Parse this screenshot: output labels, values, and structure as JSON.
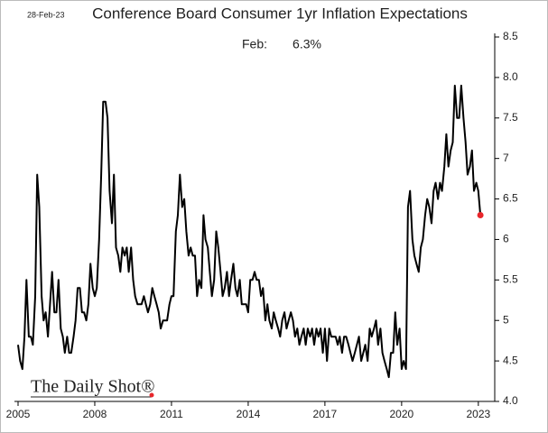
{
  "chart_data": {
    "type": "line",
    "title": "Conference Board Consumer 1yr Inflation Expectations",
    "date": "28-Feb-23",
    "annotation": {
      "label": "Feb:",
      "value": "6.3%"
    },
    "source": "The Daily Shot®",
    "xlim": [
      2005,
      2023.5
    ],
    "xticks": [
      2005,
      2008,
      2011,
      2014,
      2017,
      2020,
      2023
    ],
    "ylim": [
      4.0,
      8.5
    ],
    "yticks": [
      {
        "value": 4.0,
        "label": "4.0"
      },
      4.5,
      5.0,
      5.5,
      6.0,
      6.5,
      7.0,
      7.5,
      {
        "value": 8.0,
        "label": "8.0"
      },
      8.5
    ],
    "last_point_color": "#e8262b",
    "series": [
      {
        "name": "Consumer 1yr Inflation Expectations",
        "color": "#000000",
        "x": [
          2005.0,
          2005.08,
          2005.17,
          2005.25,
          2005.33,
          2005.42,
          2005.5,
          2005.58,
          2005.67,
          2005.75,
          2005.83,
          2005.92,
          2006.0,
          2006.08,
          2006.17,
          2006.25,
          2006.33,
          2006.42,
          2006.5,
          2006.58,
          2006.67,
          2006.75,
          2006.83,
          2006.92,
          2007.0,
          2007.08,
          2007.17,
          2007.25,
          2007.33,
          2007.42,
          2007.5,
          2007.58,
          2007.67,
          2007.75,
          2007.83,
          2007.92,
          2008.0,
          2008.08,
          2008.17,
          2008.25,
          2008.33,
          2008.42,
          2008.5,
          2008.58,
          2008.67,
          2008.75,
          2008.83,
          2008.92,
          2009.0,
          2009.08,
          2009.17,
          2009.25,
          2009.33,
          2009.42,
          2009.5,
          2009.58,
          2009.67,
          2009.75,
          2009.83,
          2009.92,
          2010.0,
          2010.08,
          2010.17,
          2010.25,
          2010.33,
          2010.42,
          2010.5,
          2010.58,
          2010.67,
          2010.75,
          2010.83,
          2010.92,
          2011.0,
          2011.08,
          2011.17,
          2011.25,
          2011.33,
          2011.42,
          2011.5,
          2011.58,
          2011.67,
          2011.75,
          2011.83,
          2011.92,
          2012.0,
          2012.08,
          2012.17,
          2012.25,
          2012.33,
          2012.42,
          2012.5,
          2012.58,
          2012.67,
          2012.75,
          2012.83,
          2012.92,
          2013.0,
          2013.08,
          2013.17,
          2013.25,
          2013.33,
          2013.42,
          2013.5,
          2013.58,
          2013.67,
          2013.75,
          2013.83,
          2013.92,
          2014.0,
          2014.08,
          2014.17,
          2014.25,
          2014.33,
          2014.42,
          2014.5,
          2014.58,
          2014.67,
          2014.75,
          2014.83,
          2014.92,
          2015.0,
          2015.08,
          2015.17,
          2015.25,
          2015.33,
          2015.42,
          2015.5,
          2015.58,
          2015.67,
          2015.75,
          2015.83,
          2015.92,
          2016.0,
          2016.08,
          2016.17,
          2016.25,
          2016.33,
          2016.42,
          2016.5,
          2016.58,
          2016.67,
          2016.75,
          2016.83,
          2016.92,
          2017.0,
          2017.08,
          2017.17,
          2017.25,
          2017.33,
          2017.42,
          2017.5,
          2017.58,
          2017.67,
          2017.75,
          2017.83,
          2017.92,
          2018.0,
          2018.08,
          2018.17,
          2018.25,
          2018.33,
          2018.42,
          2018.5,
          2018.58,
          2018.67,
          2018.75,
          2018.83,
          2018.92,
          2019.0,
          2019.08,
          2019.17,
          2019.25,
          2019.33,
          2019.42,
          2019.5,
          2019.58,
          2019.67,
          2019.75,
          2019.83,
          2019.92,
          2020.0,
          2020.08,
          2020.17,
          2020.25,
          2020.33,
          2020.42,
          2020.5,
          2020.58,
          2020.67,
          2020.75,
          2020.83,
          2020.92,
          2021.0,
          2021.08,
          2021.17,
          2021.25,
          2021.33,
          2021.42,
          2021.5,
          2021.58,
          2021.67,
          2021.75,
          2021.83,
          2021.92,
          2022.0,
          2022.08,
          2022.17,
          2022.25,
          2022.33,
          2022.42,
          2022.5,
          2022.58,
          2022.67,
          2022.75,
          2022.83,
          2022.92,
          2023.0,
          2023.08
        ],
        "values": [
          4.7,
          4.5,
          4.4,
          4.8,
          5.5,
          4.8,
          4.8,
          4.7,
          5.3,
          6.8,
          6.4,
          5.3,
          5.0,
          5.1,
          4.8,
          5.2,
          5.6,
          5.1,
          5.1,
          5.5,
          4.9,
          4.8,
          4.6,
          4.8,
          4.6,
          4.6,
          4.8,
          5.0,
          5.4,
          5.4,
          5.1,
          5.1,
          5.0,
          5.2,
          5.7,
          5.4,
          5.3,
          5.4,
          6.0,
          6.8,
          7.7,
          7.7,
          7.5,
          6.6,
          6.2,
          6.8,
          5.9,
          5.8,
          5.6,
          5.9,
          5.8,
          5.9,
          5.6,
          5.9,
          5.5,
          5.3,
          5.2,
          5.2,
          5.2,
          5.3,
          5.2,
          5.1,
          5.2,
          5.4,
          5.3,
          5.2,
          5.1,
          4.9,
          5.0,
          5.0,
          5.0,
          5.2,
          5.3,
          5.3,
          6.1,
          6.3,
          6.8,
          6.4,
          6.5,
          6.1,
          5.8,
          5.9,
          5.8,
          5.8,
          5.3,
          5.5,
          5.4,
          6.3,
          6.0,
          5.9,
          5.6,
          5.3,
          5.5,
          6.1,
          5.9,
          5.6,
          5.3,
          5.4,
          5.6,
          5.3,
          5.5,
          5.7,
          5.4,
          5.3,
          5.5,
          5.2,
          5.2,
          5.2,
          5.1,
          5.5,
          5.5,
          5.6,
          5.5,
          5.5,
          5.3,
          5.4,
          5.0,
          5.2,
          5.0,
          4.9,
          5.1,
          5.0,
          4.9,
          4.8,
          5.0,
          5.1,
          4.9,
          5.0,
          5.1,
          5.0,
          4.8,
          4.9,
          4.7,
          4.8,
          4.9,
          4.7,
          4.9,
          4.8,
          4.9,
          4.7,
          4.9,
          4.8,
          4.9,
          4.6,
          4.9,
          4.5,
          4.9,
          4.8,
          4.8,
          4.8,
          4.7,
          4.8,
          4.6,
          4.8,
          4.8,
          4.7,
          4.6,
          4.5,
          4.6,
          4.7,
          4.8,
          4.5,
          4.6,
          4.7,
          4.5,
          4.9,
          4.8,
          4.9,
          5.0,
          4.7,
          4.9,
          4.6,
          4.5,
          4.4,
          4.3,
          4.6,
          4.6,
          5.1,
          4.7,
          4.9,
          4.4,
          4.5,
          4.4,
          6.4,
          6.6,
          6.0,
          5.8,
          5.7,
          5.6,
          5.9,
          6.0,
          6.3,
          6.5,
          6.4,
          6.2,
          6.6,
          6.7,
          6.5,
          6.7,
          6.6,
          6.9,
          7.3,
          6.9,
          7.1,
          7.2,
          7.9,
          7.5,
          7.5,
          7.9,
          7.5,
          7.2,
          6.8,
          6.9,
          7.1,
          6.6,
          6.7,
          6.6,
          6.3
        ]
      }
    ]
  }
}
